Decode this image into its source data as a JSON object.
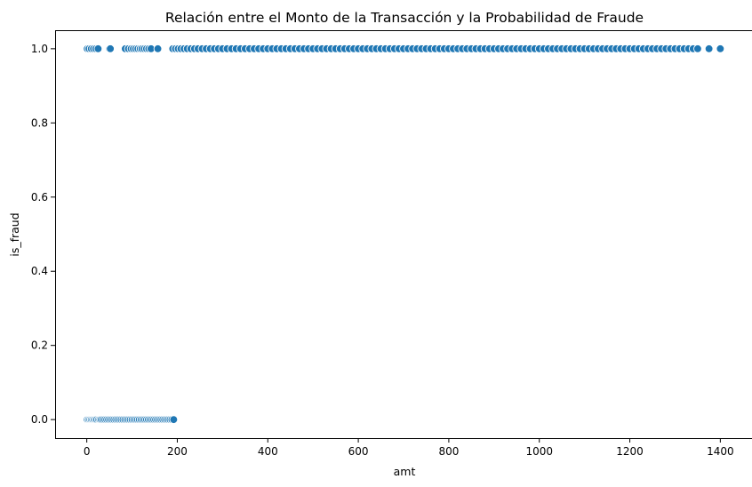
{
  "chart_data": {
    "type": "scatter",
    "title": "Relación entre el Monto de la Transacción y la Probabilidad de Fraude",
    "xlabel": "amt",
    "ylabel": "is_fraud",
    "xlim": [
      -70,
      1470
    ],
    "ylim": [
      -0.05,
      1.05
    ],
    "xticks": [
      0,
      200,
      400,
      600,
      800,
      1000,
      1200,
      1400
    ],
    "xtick_labels": [
      "0",
      "200",
      "400",
      "600",
      "800",
      "1000",
      "1200",
      "1400"
    ],
    "yticks": [
      0.0,
      0.2,
      0.4,
      0.6,
      0.8,
      1.0
    ],
    "ytick_labels": [
      "0.0",
      "0.2",
      "0.4",
      "0.6",
      "0.8",
      "1.0"
    ],
    "grid": false,
    "marker_color": "#1f77b4",
    "series": [
      {
        "points": [
          {
            "x": 1,
            "y": 0
          },
          {
            "x": 4,
            "y": 0
          },
          {
            "x": 7,
            "y": 0
          },
          {
            "x": 10,
            "y": 0
          },
          {
            "x": 13,
            "y": 0
          },
          {
            "x": 16,
            "y": 0
          },
          {
            "x": 19,
            "y": 0
          },
          {
            "x": 22,
            "y": 0
          },
          {
            "x": 26,
            "y": 0
          },
          {
            "x": 29,
            "y": 0
          },
          {
            "x": 32,
            "y": 0
          },
          {
            "x": 36,
            "y": 0
          },
          {
            "x": 40,
            "y": 0
          },
          {
            "x": 44,
            "y": 0
          },
          {
            "x": 48,
            "y": 0
          },
          {
            "x": 52,
            "y": 0
          },
          {
            "x": 56,
            "y": 0
          },
          {
            "x": 60,
            "y": 0
          },
          {
            "x": 64,
            "y": 0
          },
          {
            "x": 68,
            "y": 0
          },
          {
            "x": 72,
            "y": 0
          },
          {
            "x": 76,
            "y": 0
          },
          {
            "x": 80,
            "y": 0
          },
          {
            "x": 84,
            "y": 0
          },
          {
            "x": 88,
            "y": 0
          },
          {
            "x": 92,
            "y": 0
          },
          {
            "x": 96,
            "y": 0
          },
          {
            "x": 100,
            "y": 0
          },
          {
            "x": 104,
            "y": 0
          },
          {
            "x": 108,
            "y": 0
          },
          {
            "x": 112,
            "y": 0
          },
          {
            "x": 116,
            "y": 0
          },
          {
            "x": 120,
            "y": 0
          },
          {
            "x": 124,
            "y": 0
          },
          {
            "x": 128,
            "y": 0
          },
          {
            "x": 132,
            "y": 0
          },
          {
            "x": 136,
            "y": 0
          },
          {
            "x": 140,
            "y": 0
          },
          {
            "x": 144,
            "y": 0
          },
          {
            "x": 148,
            "y": 0
          },
          {
            "x": 152,
            "y": 0
          },
          {
            "x": 156,
            "y": 0
          },
          {
            "x": 160,
            "y": 0
          },
          {
            "x": 164,
            "y": 0
          },
          {
            "x": 168,
            "y": 0
          },
          {
            "x": 172,
            "y": 0
          },
          {
            "x": 176,
            "y": 0
          },
          {
            "x": 180,
            "y": 0
          },
          {
            "x": 184,
            "y": 0
          },
          {
            "x": 188,
            "y": 0
          },
          {
            "x": 192,
            "y": 0
          },
          {
            "x": 1,
            "y": 1
          },
          {
            "x": 5,
            "y": 1
          },
          {
            "x": 10,
            "y": 1
          },
          {
            "x": 15,
            "y": 1
          },
          {
            "x": 20,
            "y": 1
          },
          {
            "x": 25,
            "y": 1
          },
          {
            "x": 50,
            "y": 1
          },
          {
            "x": 52,
            "y": 1
          },
          {
            "x": 85,
            "y": 1
          },
          {
            "x": 92,
            "y": 1
          },
          {
            "x": 98,
            "y": 1
          },
          {
            "x": 103,
            "y": 1
          },
          {
            "x": 108,
            "y": 1
          },
          {
            "x": 113,
            "y": 1
          },
          {
            "x": 118,
            "y": 1
          },
          {
            "x": 122,
            "y": 1
          },
          {
            "x": 127,
            "y": 1
          },
          {
            "x": 132,
            "y": 1
          },
          {
            "x": 137,
            "y": 1
          },
          {
            "x": 142,
            "y": 1
          },
          {
            "x": 157,
            "y": 1
          },
          {
            "x": 190,
            "y": 1
          },
          {
            "x": 196,
            "y": 1
          },
          {
            "x": 202,
            "y": 1
          },
          {
            "x": 208,
            "y": 1
          },
          {
            "x": 215,
            "y": 1
          },
          {
            "x": 222,
            "y": 1
          },
          {
            "x": 230,
            "y": 1
          },
          {
            "x": 238,
            "y": 1
          },
          {
            "x": 246,
            "y": 1
          },
          {
            "x": 255,
            "y": 1
          },
          {
            "x": 264,
            "y": 1
          },
          {
            "x": 273,
            "y": 1
          },
          {
            "x": 282,
            "y": 1
          },
          {
            "x": 291,
            "y": 1
          },
          {
            "x": 300,
            "y": 1
          },
          {
            "x": 310,
            "y": 1
          },
          {
            "x": 320,
            "y": 1
          },
          {
            "x": 330,
            "y": 1
          },
          {
            "x": 340,
            "y": 1
          },
          {
            "x": 350,
            "y": 1
          },
          {
            "x": 360,
            "y": 1
          },
          {
            "x": 370,
            "y": 1
          },
          {
            "x": 380,
            "y": 1
          },
          {
            "x": 390,
            "y": 1
          },
          {
            "x": 400,
            "y": 1
          },
          {
            "x": 410,
            "y": 1
          },
          {
            "x": 420,
            "y": 1
          },
          {
            "x": 430,
            "y": 1
          },
          {
            "x": 440,
            "y": 1
          },
          {
            "x": 450,
            "y": 1
          },
          {
            "x": 460,
            "y": 1
          },
          {
            "x": 470,
            "y": 1
          },
          {
            "x": 480,
            "y": 1
          },
          {
            "x": 490,
            "y": 1
          },
          {
            "x": 500,
            "y": 1
          },
          {
            "x": 510,
            "y": 1
          },
          {
            "x": 520,
            "y": 1
          },
          {
            "x": 530,
            "y": 1
          },
          {
            "x": 540,
            "y": 1
          },
          {
            "x": 550,
            "y": 1
          },
          {
            "x": 560,
            "y": 1
          },
          {
            "x": 570,
            "y": 1
          },
          {
            "x": 580,
            "y": 1
          },
          {
            "x": 590,
            "y": 1
          },
          {
            "x": 600,
            "y": 1
          },
          {
            "x": 610,
            "y": 1
          },
          {
            "x": 620,
            "y": 1
          },
          {
            "x": 630,
            "y": 1
          },
          {
            "x": 640,
            "y": 1
          },
          {
            "x": 650,
            "y": 1
          },
          {
            "x": 660,
            "y": 1
          },
          {
            "x": 670,
            "y": 1
          },
          {
            "x": 680,
            "y": 1
          },
          {
            "x": 690,
            "y": 1
          },
          {
            "x": 700,
            "y": 1
          },
          {
            "x": 710,
            "y": 1
          },
          {
            "x": 720,
            "y": 1
          },
          {
            "x": 730,
            "y": 1
          },
          {
            "x": 740,
            "y": 1
          },
          {
            "x": 750,
            "y": 1
          },
          {
            "x": 760,
            "y": 1
          },
          {
            "x": 770,
            "y": 1
          },
          {
            "x": 780,
            "y": 1
          },
          {
            "x": 790,
            "y": 1
          },
          {
            "x": 800,
            "y": 1
          },
          {
            "x": 810,
            "y": 1
          },
          {
            "x": 820,
            "y": 1
          },
          {
            "x": 830,
            "y": 1
          },
          {
            "x": 840,
            "y": 1
          },
          {
            "x": 850,
            "y": 1
          },
          {
            "x": 860,
            "y": 1
          },
          {
            "x": 870,
            "y": 1
          },
          {
            "x": 880,
            "y": 1
          },
          {
            "x": 890,
            "y": 1
          },
          {
            "x": 900,
            "y": 1
          },
          {
            "x": 910,
            "y": 1
          },
          {
            "x": 920,
            "y": 1
          },
          {
            "x": 930,
            "y": 1
          },
          {
            "x": 940,
            "y": 1
          },
          {
            "x": 950,
            "y": 1
          },
          {
            "x": 960,
            "y": 1
          },
          {
            "x": 970,
            "y": 1
          },
          {
            "x": 980,
            "y": 1
          },
          {
            "x": 990,
            "y": 1
          },
          {
            "x": 1000,
            "y": 1
          },
          {
            "x": 1010,
            "y": 1
          },
          {
            "x": 1020,
            "y": 1
          },
          {
            "x": 1030,
            "y": 1
          },
          {
            "x": 1040,
            "y": 1
          },
          {
            "x": 1050,
            "y": 1
          },
          {
            "x": 1060,
            "y": 1
          },
          {
            "x": 1070,
            "y": 1
          },
          {
            "x": 1080,
            "y": 1
          },
          {
            "x": 1090,
            "y": 1
          },
          {
            "x": 1100,
            "y": 1
          },
          {
            "x": 1110,
            "y": 1
          },
          {
            "x": 1120,
            "y": 1
          },
          {
            "x": 1130,
            "y": 1
          },
          {
            "x": 1140,
            "y": 1
          },
          {
            "x": 1150,
            "y": 1
          },
          {
            "x": 1160,
            "y": 1
          },
          {
            "x": 1170,
            "y": 1
          },
          {
            "x": 1180,
            "y": 1
          },
          {
            "x": 1190,
            "y": 1
          },
          {
            "x": 1200,
            "y": 1
          },
          {
            "x": 1210,
            "y": 1
          },
          {
            "x": 1220,
            "y": 1
          },
          {
            "x": 1230,
            "y": 1
          },
          {
            "x": 1240,
            "y": 1
          },
          {
            "x": 1250,
            "y": 1
          },
          {
            "x": 1260,
            "y": 1
          },
          {
            "x": 1270,
            "y": 1
          },
          {
            "x": 1280,
            "y": 1
          },
          {
            "x": 1290,
            "y": 1
          },
          {
            "x": 1300,
            "y": 1
          },
          {
            "x": 1310,
            "y": 1
          },
          {
            "x": 1320,
            "y": 1
          },
          {
            "x": 1330,
            "y": 1
          },
          {
            "x": 1340,
            "y": 1
          },
          {
            "x": 1350,
            "y": 1
          },
          {
            "x": 1375,
            "y": 1
          },
          {
            "x": 1400,
            "y": 1
          }
        ]
      }
    ]
  }
}
